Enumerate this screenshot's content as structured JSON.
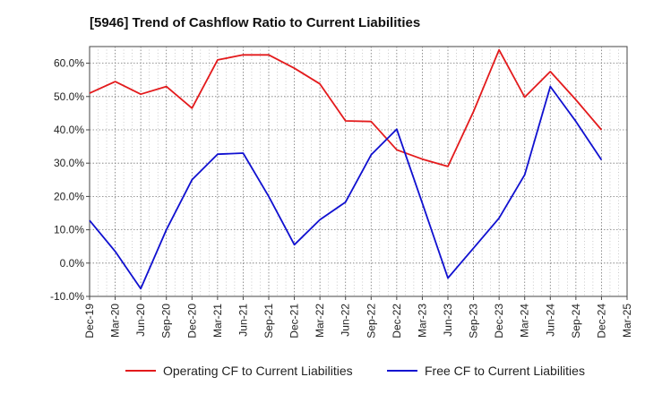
{
  "chart_data": {
    "type": "line",
    "title": "[5946]  Trend of Cashflow Ratio to Current Liabilities",
    "xlabel": "",
    "ylabel": "",
    "ylim": [
      -10,
      65
    ],
    "y_ticks": [
      -10,
      0,
      10,
      20,
      30,
      40,
      50,
      60
    ],
    "y_tick_labels": [
      "-10.0%",
      "0.0%",
      "10.0%",
      "20.0%",
      "30.0%",
      "40.0%",
      "50.0%",
      "60.0%"
    ],
    "x_tick_labels": [
      "Dec-19",
      "Mar-20",
      "Jun-20",
      "Sep-20",
      "Dec-20",
      "Mar-21",
      "Jun-21",
      "Sep-21",
      "Dec-21",
      "Mar-22",
      "Jun-22",
      "Sep-22",
      "Dec-22",
      "Mar-23",
      "Jun-23",
      "Sep-23",
      "Dec-23",
      "Mar-24",
      "Jun-24",
      "Sep-24",
      "Dec-24",
      "Mar-25"
    ],
    "x": [
      "Dec-19",
      "Mar-20",
      "Jun-20",
      "Sep-20",
      "Dec-20",
      "Mar-21",
      "Jun-21",
      "Sep-21",
      "Dec-21",
      "Mar-22",
      "Jun-22",
      "Sep-22",
      "Dec-22",
      "Mar-23",
      "Jun-23",
      "Sep-23",
      "Dec-23",
      "Mar-24",
      "Jun-24",
      "Sep-24",
      "Dec-24"
    ],
    "grid": true,
    "legend_position": "bottom",
    "series": [
      {
        "name": "Operating CF to Current Liabilities",
        "color": "#e31a1c",
        "values": [
          51.0,
          54.5,
          50.7,
          53.0,
          46.5,
          61.0,
          62.5,
          62.5,
          58.5,
          53.8,
          42.7,
          42.5,
          34.0,
          31.2,
          29.0,
          45.5,
          64.0,
          49.8,
          57.5,
          49.0,
          40.0
        ]
      },
      {
        "name": "Free CF to Current Liabilities",
        "color": "#1010d0",
        "values": [
          12.8,
          3.5,
          -7.7,
          10.0,
          25.0,
          32.7,
          33.0,
          20.0,
          5.5,
          13.0,
          18.3,
          32.5,
          40.2,
          18.0,
          -4.5,
          4.5,
          13.5,
          26.5,
          53.0,
          42.5,
          31.0
        ]
      }
    ]
  }
}
